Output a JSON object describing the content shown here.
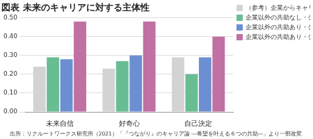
{
  "chart_data": {
    "type": "bar",
    "title": "図表 未来のキャリアに対する主体性",
    "source": "出所：リクルートワークス研究所（2021）「『つながり』のキャリア論 ―希望を叶える６つの共助―」より一部改変",
    "categories": [
      "未来自信",
      "好奇心",
      "自己決定"
    ],
    "series": [
      {
        "name": "（参考）企業からキャリアの支えあり",
        "color": "#d3d3d3",
        "values": [
          0.24,
          0.23,
          0.29
        ]
      },
      {
        "name": "企業以外の共助なし・公助なし",
        "color": "#68bd92",
        "values": [
          0.29,
          0.27,
          0.2
        ]
      },
      {
        "name": "企業以外の共助あり・公助なし",
        "color": "#6b8fd2",
        "values": [
          0.28,
          0.3,
          0.29
        ]
      },
      {
        "name": "企業以外の共助あり・公助あり",
        "color": "#c170a3",
        "values": [
          0.48,
          0.48,
          0.4
        ]
      }
    ],
    "ylim": [
      0,
      0.5
    ],
    "yticks": [
      {
        "value": 0,
        "label": "0.00"
      },
      {
        "value": 0.1,
        "label": "0.10"
      },
      {
        "value": 0.2,
        "label": "0.20"
      },
      {
        "value": 0.3,
        "label": "0.30"
      },
      {
        "value": 0.4,
        "label": "0.40"
      },
      {
        "value": 0.5,
        "label": "0.50"
      }
    ],
    "grid": true,
    "legend": "top-right"
  }
}
